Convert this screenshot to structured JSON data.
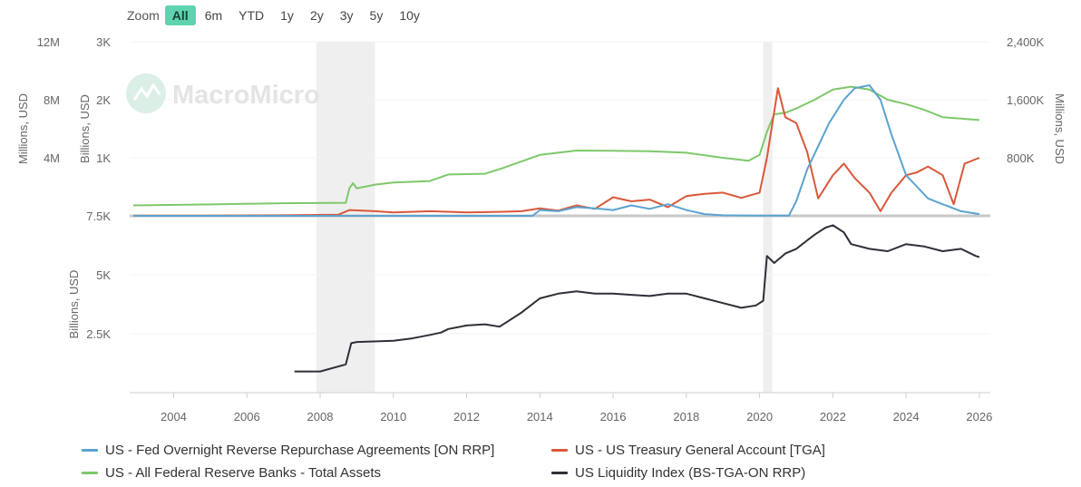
{
  "zoom": {
    "label": "Zoom",
    "buttons": [
      "All",
      "6m",
      "YTD",
      "1y",
      "2y",
      "3y",
      "5y",
      "10y"
    ],
    "active": "All"
  },
  "watermark": "MacroMicro",
  "colors": {
    "on_rrp": "#5ba3cf",
    "tga": "#d9583a",
    "assets": "#7ec86a",
    "liquidity": "#2e2f38",
    "recession": "#efefef",
    "axis": "#cfcfcf",
    "text": "#666666"
  },
  "legend": [
    {
      "name": "US - Fed Overnight Reverse Repurchase Agreements [ON RRP]",
      "color": "#5ba3cf"
    },
    {
      "name": "US - US Treasury General Account [TGA]",
      "color": "#d9583a"
    },
    {
      "name": "US - All Federal Reserve Banks - Total Assets",
      "color": "#7ec86a"
    },
    {
      "name": "US Liquidity Index (BS-TGA-ON RRP)",
      "color": "#2e2f38"
    }
  ],
  "chart_data": {
    "type": "line",
    "x_ticks": [
      "2004",
      "2006",
      "2008",
      "2010",
      "2012",
      "2014",
      "2016",
      "2018",
      "2020",
      "2022",
      "2024",
      "2026"
    ],
    "x_range": [
      2002.8,
      2026.3
    ],
    "recession_bands": [
      [
        2007.9,
        2009.5
      ],
      [
        2020.1,
        2020.35
      ]
    ],
    "upper_panel": {
      "axes": {
        "left_outer": {
          "label": "Millions, USD",
          "ticks": [
            "4M",
            "8M",
            "12M"
          ],
          "range": [
            0,
            12000000
          ]
        },
        "left_inner": {
          "label": "Billions, USD",
          "ticks": [
            "1K",
            "2K",
            "3K"
          ],
          "range": [
            0,
            3000
          ]
        },
        "right": {
          "label": "Millions, USD",
          "ticks": [
            "800K",
            "1,600K",
            "2,400K"
          ],
          "range": [
            0,
            2400000
          ]
        }
      },
      "series": [
        {
          "name": "US - All Federal Reserve Banks - Total Assets",
          "axis": "left_outer",
          "x": [
            2002.9,
            2005,
            2007,
            2008.7,
            2008.8,
            2008.9,
            2009.0,
            2009.5,
            2010,
            2011,
            2011.5,
            2012.5,
            2013,
            2014,
            2015,
            2016,
            2017,
            2018,
            2019,
            2019.7,
            2020.0,
            2020.2,
            2020.4,
            2020.7,
            2021,
            2021.5,
            2022,
            2022.5,
            2023,
            2023.5,
            2024,
            2024.5,
            2025,
            2025.5,
            2026.0
          ],
          "y": [
            720000,
            790000,
            870000,
            900000,
            1900000,
            2250000,
            1900000,
            2150000,
            2300000,
            2400000,
            2850000,
            2900000,
            3300000,
            4200000,
            4500000,
            4480000,
            4450000,
            4350000,
            4000000,
            3800000,
            4200000,
            5800000,
            7000000,
            7100000,
            7400000,
            8000000,
            8700000,
            8900000,
            8700000,
            8000000,
            7700000,
            7300000,
            6800000,
            6700000,
            6600000
          ]
        },
        {
          "name": "US - US Treasury General Account [TGA]",
          "axis": "left_inner",
          "x": [
            2002.9,
            2005,
            2007,
            2008.5,
            2008.8,
            2009.5,
            2010,
            2011,
            2012,
            2013,
            2013.5,
            2014,
            2014.5,
            2015,
            2015.5,
            2016,
            2016.5,
            2017,
            2017.5,
            2018,
            2018.5,
            2019,
            2019.5,
            2020.0,
            2020.2,
            2020.5,
            2020.7,
            2021.0,
            2021.3,
            2021.6,
            2022.0,
            2022.3,
            2022.6,
            2023.0,
            2023.3,
            2023.6,
            2024.0,
            2024.3,
            2024.6,
            2025.0,
            2025.3,
            2025.6,
            2026.0
          ],
          "y": [
            5,
            5,
            10,
            20,
            100,
            80,
            60,
            80,
            60,
            70,
            80,
            130,
            90,
            180,
            120,
            320,
            250,
            280,
            150,
            340,
            380,
            400,
            310,
            400,
            1000,
            2200,
            1700,
            1600,
            1100,
            300,
            700,
            900,
            650,
            400,
            80,
            400,
            700,
            750,
            850,
            700,
            200,
            900,
            1000
          ]
        },
        {
          "name": "US - Fed Overnight Reverse Repurchase Agreements [ON RRP]",
          "axis": "left_inner",
          "x": [
            2002.9,
            2010,
            2013.8,
            2014,
            2014.5,
            2015,
            2015.5,
            2016,
            2016.5,
            2017,
            2017.5,
            2018,
            2018.5,
            2019,
            2020,
            2020.8,
            2021.0,
            2021.3,
            2021.6,
            2021.9,
            2022.3,
            2022.6,
            2023.0,
            2023.3,
            2023.6,
            2024.0,
            2024.3,
            2024.6,
            2025.0,
            2025.5,
            2026.0
          ],
          "y": [
            0,
            0,
            0,
            100,
            80,
            150,
            130,
            100,
            180,
            120,
            200,
            100,
            30,
            10,
            5,
            5,
            250,
            800,
            1200,
            1600,
            2000,
            2200,
            2250,
            2000,
            1400,
            700,
            500,
            300,
            200,
            80,
            30
          ]
        }
      ]
    },
    "lower_panel": {
      "axes": {
        "left": {
          "label": "Billions, USD",
          "ticks": [
            "2.5K",
            "5K",
            "7.5K"
          ],
          "range": [
            0,
            7500
          ]
        }
      },
      "series": [
        {
          "name": "US Liquidity Index (BS-TGA-ON RRP)",
          "axis": "left",
          "x": [
            2007.3,
            2008.0,
            2008.7,
            2008.85,
            2009.0,
            2010.0,
            2010.5,
            2011.0,
            2011.3,
            2011.5,
            2012.0,
            2012.5,
            2012.9,
            2013.5,
            2014.0,
            2014.5,
            2015.0,
            2015.5,
            2016.0,
            2016.5,
            2017.0,
            2017.5,
            2018.0,
            2018.5,
            2019.0,
            2019.5,
            2019.9,
            2020.1,
            2020.2,
            2020.4,
            2020.7,
            2021.0,
            2021.5,
            2021.8,
            2022.0,
            2022.3,
            2022.5,
            2023.0,
            2023.5,
            2024.0,
            2024.5,
            2025.0,
            2025.5,
            2025.9,
            2026.0
          ],
          "y": [
            900,
            900,
            1200,
            2100,
            2150,
            2200,
            2300,
            2450,
            2550,
            2700,
            2850,
            2900,
            2800,
            3400,
            4000,
            4200,
            4300,
            4200,
            4200,
            4150,
            4100,
            4200,
            4200,
            4000,
            3800,
            3600,
            3700,
            3900,
            5800,
            5500,
            5900,
            6100,
            6700,
            7000,
            7100,
            6800,
            6300,
            6100,
            6000,
            6300,
            6200,
            6000,
            6100,
            5800,
            5750
          ]
        }
      ]
    }
  }
}
